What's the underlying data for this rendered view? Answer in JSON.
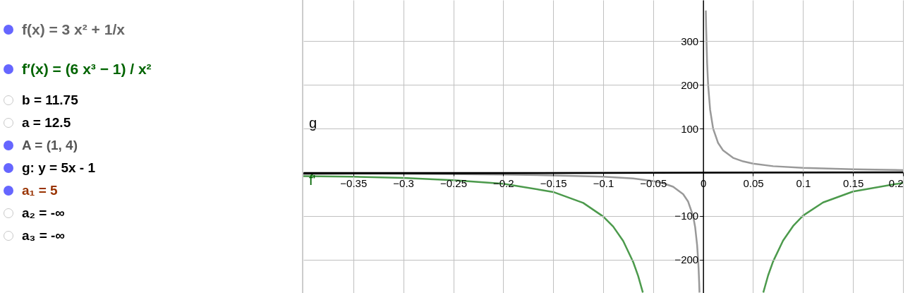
{
  "chart_data": {
    "type": "line",
    "annotations": [
      "f(x) = 3 x² + 1/x",
      "f′(x) = (6 x³ − 1) / x²",
      "b = 11.75",
      "a = 12.5",
      "A = (1, 4)",
      "g: y = 5x - 1",
      "a₁ = 5",
      "a₂ = -∞",
      "a₃ = -∞",
      "g",
      "f'"
    ],
    "series": [
      {
        "color": "#999999",
        "x": [
          -0.4,
          -0.3,
          -0.2,
          -0.15,
          -0.1,
          -0.07,
          -0.05,
          -0.04,
          -0.03,
          -0.02,
          -0.015,
          -0.01,
          -0.008,
          -0.006,
          -0.005,
          -0.0045,
          -0.004,
          -0.00363,
          0,
          0.0027,
          0.003,
          0.004,
          0.005,
          0.007,
          0.01,
          0.015,
          0.02,
          0.03,
          0.04,
          0.05,
          0.07,
          0.1,
          0.15,
          0.2
        ],
        "values": [
          -2,
          -3,
          -5,
          -7,
          -10,
          -14,
          -20,
          -25,
          -33,
          -50,
          -67,
          -100,
          -125,
          -167,
          -200,
          -222,
          -250,
          -275,
          null,
          370,
          333,
          250,
          200,
          143,
          100,
          67,
          50,
          33,
          25,
          20,
          14,
          10,
          7,
          5
        ]
      },
      {
        "color": "#4c9a4c",
        "x": [
          -0.4,
          -0.35,
          -0.3,
          -0.25,
          -0.2,
          -0.15,
          -0.12,
          -0.1,
          -0.09,
          -0.08,
          -0.07,
          -0.065,
          -0.0603,
          0,
          0.0602,
          0.065,
          0.07,
          0.08,
          0.09,
          0.1,
          0.12,
          0.15,
          0.2
        ],
        "values": [
          -9,
          -10,
          -13,
          -18,
          -26,
          -45,
          -70,
          -101,
          -124,
          -157,
          -205,
          -237,
          -275,
          null,
          -275,
          -236,
          -204,
          -156,
          -123,
          -99,
          -69,
          -44,
          -24
        ]
      },
      {
        "color": "#000000",
        "x": [
          -0.4,
          0.2
        ],
        "values": [
          -3,
          0
        ]
      }
    ],
    "xlim": [
      -0.4,
      0.2
    ],
    "ylim": [
      -276,
      394
    ],
    "xticks": [
      -0.35,
      -0.3,
      -0.25,
      -0.2,
      -0.15,
      -0.1,
      -0.05,
      0,
      0.05,
      0.1,
      0.15,
      0.2
    ],
    "yticks": [
      -200,
      -100,
      100,
      200,
      300
    ],
    "grid": true,
    "line_style": "solid"
  }
}
